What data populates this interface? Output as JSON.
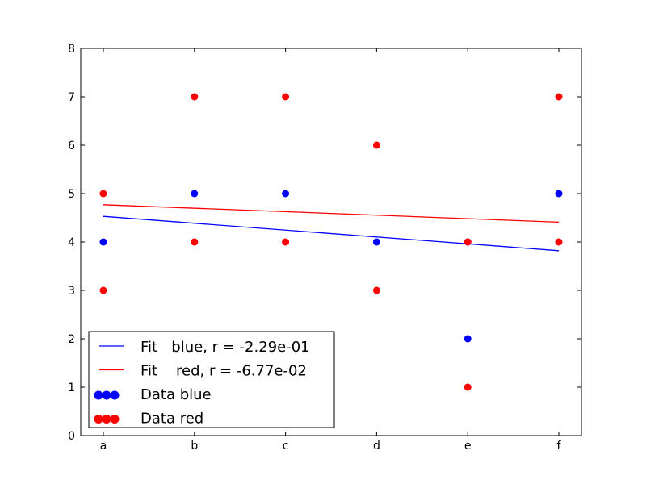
{
  "chart_data": {
    "type": "scatter",
    "title": "",
    "xlabel": "",
    "ylabel": "",
    "categories": [
      "a",
      "b",
      "c",
      "d",
      "e",
      "f"
    ],
    "ylim": [
      0,
      8
    ],
    "yticks": [
      0,
      1,
      2,
      3,
      4,
      5,
      6,
      7,
      8
    ],
    "grid": false,
    "legend_position": "lower-left",
    "series": [
      {
        "name": "Data blue",
        "kind": "scatter",
        "color": "#0000ff",
        "points": [
          {
            "x": "a",
            "y": 4
          },
          {
            "x": "b",
            "y": 5
          },
          {
            "x": "c",
            "y": 5
          },
          {
            "x": "d",
            "y": 4
          },
          {
            "x": "e",
            "y": 2
          },
          {
            "x": "e",
            "y": 4
          },
          {
            "x": "f",
            "y": 5
          }
        ]
      },
      {
        "name": "Data red",
        "kind": "scatter",
        "color": "#ff0000",
        "points": [
          {
            "x": "a",
            "y": 5
          },
          {
            "x": "a",
            "y": 3
          },
          {
            "x": "b",
            "y": 7
          },
          {
            "x": "b",
            "y": 4
          },
          {
            "x": "c",
            "y": 7
          },
          {
            "x": "c",
            "y": 4
          },
          {
            "x": "d",
            "y": 6
          },
          {
            "x": "d",
            "y": 3
          },
          {
            "x": "e",
            "y": 4
          },
          {
            "x": "e",
            "y": 1
          },
          {
            "x": "f",
            "y": 7
          },
          {
            "x": "f",
            "y": 4
          }
        ]
      },
      {
        "name": "Fit   blue, r = -2.29e-01",
        "kind": "line",
        "color": "#0000ff",
        "points": [
          {
            "x": "a",
            "y": 4.53
          },
          {
            "x": "f",
            "y": 3.82
          }
        ]
      },
      {
        "name": "Fit    red, r = -6.77e-02",
        "kind": "line",
        "color": "#ff0000",
        "points": [
          {
            "x": "a",
            "y": 4.77
          },
          {
            "x": "f",
            "y": 4.41
          }
        ]
      }
    ],
    "legend": [
      {
        "label": "Fit   blue, r = -2.29e-01",
        "kind": "line",
        "color": "#0000ff"
      },
      {
        "label": "Fit    red, r = -6.77e-02",
        "kind": "line",
        "color": "#ff0000"
      },
      {
        "label": "Data blue",
        "kind": "scatter",
        "color": "#0000ff"
      },
      {
        "label": "Data red",
        "kind": "scatter",
        "color": "#ff0000"
      }
    ]
  }
}
